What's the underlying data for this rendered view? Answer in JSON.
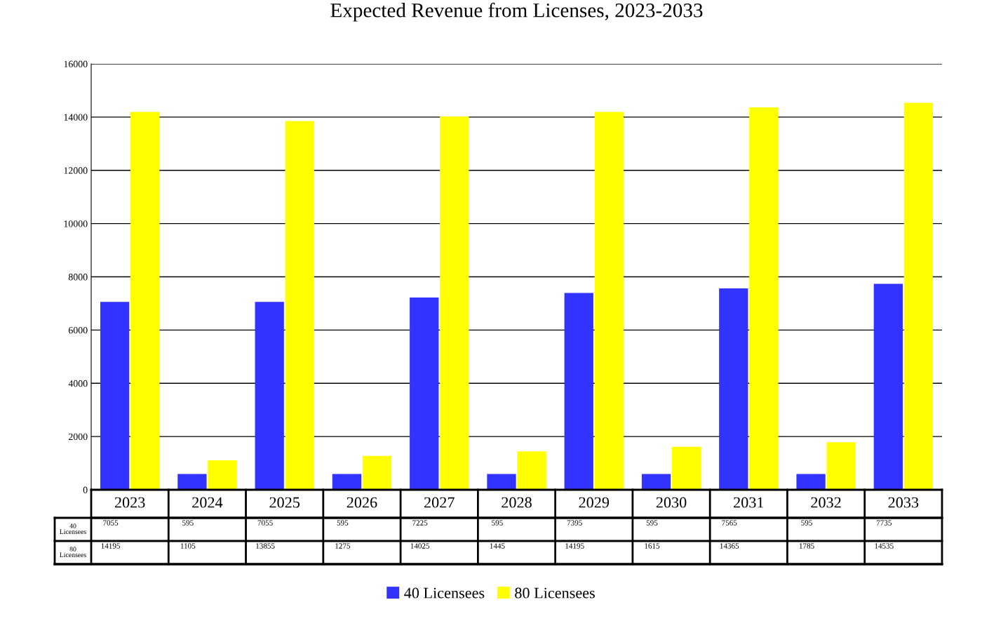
{
  "chart_data": {
    "type": "bar",
    "title": "Expected Revenue from Licenses, 2023-2033",
    "categories": [
      "2023",
      "2024",
      "2025",
      "2026",
      "2027",
      "2028",
      "2029",
      "2030",
      "2031",
      "2032",
      "2033"
    ],
    "series": [
      {
        "name": "40 Licensees",
        "color": "#3333ff",
        "values": [
          7055,
          595,
          7055,
          595,
          7225,
          595,
          7395,
          595,
          7565,
          595,
          7735
        ]
      },
      {
        "name": "80 Licensees",
        "color": "#ffff00",
        "values": [
          14195,
          1105,
          13855,
          1275,
          14025,
          1445,
          14195,
          1615,
          14365,
          1785,
          14535
        ]
      }
    ],
    "ylim": [
      0,
      16000
    ],
    "yticks": [
      0,
      2000,
      4000,
      6000,
      8000,
      10000,
      12000,
      14000,
      16000
    ],
    "grid": "y",
    "legend": "bottom",
    "data_labels": true
  }
}
